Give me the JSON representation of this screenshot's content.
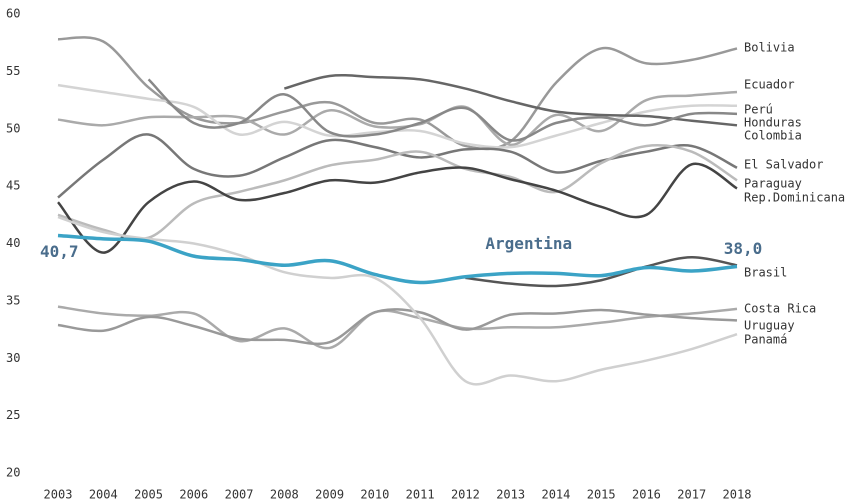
{
  "chart_data": {
    "type": "line",
    "x": [
      2003,
      2004,
      2005,
      2006,
      2007,
      2008,
      2009,
      2010,
      2011,
      2012,
      2013,
      2014,
      2015,
      2016,
      2017,
      2018
    ],
    "xlim": [
      2003,
      2018
    ],
    "xticks": [
      2003,
      2004,
      2005,
      2006,
      2007,
      2008,
      2009,
      2010,
      2011,
      2012,
      2013,
      2014,
      2015,
      2016,
      2017,
      2018
    ],
    "ylim": [
      20,
      60
    ],
    "yticks": [
      20,
      25,
      30,
      35,
      40,
      45,
      50,
      55,
      60
    ],
    "series": [
      {
        "name": "Bolivia",
        "color": "#999999",
        "values": [
          57.8,
          57.6,
          53.6,
          51,
          50.5,
          51.5,
          52.3,
          50.5,
          50.8,
          48.5,
          48.9,
          54,
          57,
          55.7,
          56,
          57
        ]
      },
      {
        "name": "Ecuador",
        "color": "#aaaaaa",
        "values": [
          50.8,
          50.3,
          51,
          51,
          51,
          49.5,
          51.6,
          50.2,
          50.4,
          51.9,
          48.6,
          51.2,
          49.8,
          52.5,
          52.9,
          53.2
        ]
      },
      {
        "name": "Perú",
        "color": "#d4d4d4",
        "values": [
          53.8,
          53.2,
          52.6,
          51.9,
          49.5,
          50.6,
          49.4,
          49.7,
          49.8,
          48.7,
          48.4,
          49.4,
          50.5,
          51.5,
          52,
          52
        ]
      },
      {
        "name": "Honduras",
        "color": "#666666",
        "values": [
          null,
          null,
          null,
          null,
          null,
          53.5,
          54.6,
          54.5,
          54.3,
          53.5,
          52.4,
          51.5,
          51.2,
          51.1,
          50.7,
          50.3
        ]
      },
      {
        "name": "Colombia",
        "color": "#888888",
        "values": [
          null,
          null,
          54.3,
          50.5,
          50.5,
          53,
          49.7,
          49.5,
          50.5,
          51.8,
          49,
          50.5,
          51,
          50.3,
          51.3,
          51.3
        ]
      },
      {
        "name": "El Salvador",
        "color": "#777777",
        "values": [
          44,
          47.3,
          49.5,
          46.5,
          45.9,
          47.5,
          49,
          48.4,
          47.5,
          48.2,
          48,
          46.2,
          47.2,
          48,
          48.5,
          46.6
        ]
      },
      {
        "name": "Paraguay",
        "color": "#bbbbbb",
        "values": [
          42.5,
          41.2,
          40.5,
          43.5,
          44.5,
          45.5,
          46.8,
          47.3,
          48,
          46.5,
          45.8,
          44.5,
          47,
          48.5,
          48,
          45.5
        ]
      },
      {
        "name": "Rep.Dominicana",
        "color": "#444444",
        "values": [
          43.6,
          39.2,
          43.6,
          45.4,
          43.8,
          44.4,
          45.5,
          45.3,
          46.2,
          46.6,
          45.6,
          44.6,
          43.2,
          42.5,
          46.9,
          44.8
        ]
      },
      {
        "name": "Argentina",
        "color": "#3ba3c6",
        "values": [
          40.7,
          40.4,
          40.2,
          38.9,
          38.6,
          38.1,
          38.5,
          37.3,
          36.6,
          37.1,
          37.4,
          37.4,
          37.2,
          37.9,
          37.6,
          38.0
        ],
        "value_labels": [
          "40,7",
          null,
          null,
          null,
          null,
          null,
          null,
          null,
          null,
          null,
          null,
          null,
          null,
          null,
          null,
          "38,0"
        ]
      },
      {
        "name": "Brasil",
        "color": "#555555",
        "values": [
          null,
          null,
          null,
          null,
          null,
          null,
          null,
          null,
          null,
          37,
          36.5,
          36.3,
          36.8,
          38,
          38.8,
          38.1
        ]
      },
      {
        "name": "Costa Rica",
        "color": "#aaaaaa",
        "values": [
          34.5,
          33.9,
          33.7,
          33.9,
          31.5,
          32.6,
          30.9,
          34,
          33.5,
          32.6,
          32.7,
          32.7,
          33.1,
          33.6,
          33.9,
          34.3
        ]
      },
      {
        "name": "Uruguay",
        "color": "#999999",
        "values": [
          32.9,
          32.4,
          33.6,
          32.8,
          31.7,
          31.6,
          31.4,
          34,
          34,
          32.5,
          33.8,
          33.9,
          34.2,
          33.8,
          33.5,
          33.3
        ]
      },
      {
        "name": "Panamá",
        "color": "#d0d0d0",
        "values": [
          42.3,
          41,
          40.4,
          40,
          39,
          37.5,
          37,
          37,
          33.5,
          28,
          28.5,
          28,
          29,
          29.8,
          30.8,
          32.1
        ]
      }
    ]
  }
}
